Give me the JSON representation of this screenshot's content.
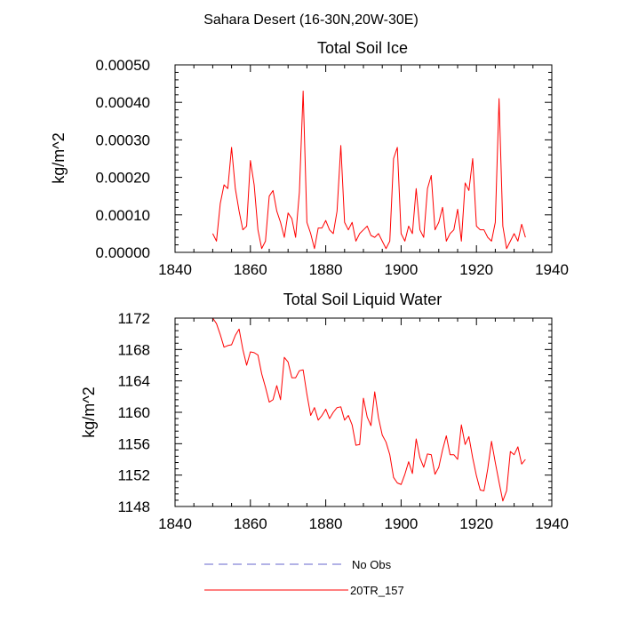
{
  "figure": {
    "title": "Sahara Desert (16-30N,20W-30E)"
  },
  "chart_data": [
    {
      "type": "line",
      "title": "Total Soil Ice",
      "xlabel": "",
      "ylabel": "kg/m^2",
      "xlim": [
        1840,
        1940
      ],
      "ylim": [
        0,
        0.0005
      ],
      "x_ticks": [
        1840,
        1860,
        1880,
        1900,
        1920,
        1940
      ],
      "x_tick_labels": [
        "1840",
        "1860",
        "1880",
        "1900",
        "1920",
        "1940"
      ],
      "y_ticks": [
        0,
        0.0001,
        0.0002,
        0.0003,
        0.0004,
        0.0005
      ],
      "y_tick_labels": [
        "0.00000",
        "0.00010",
        "0.00020",
        "0.00030",
        "0.00040",
        "0.00050"
      ],
      "series": [
        {
          "name": "20TR_157",
          "color": "#ff0000",
          "x": [
            1850,
            1851,
            1852,
            1853,
            1854,
            1855,
            1856,
            1857,
            1858,
            1859,
            1860,
            1861,
            1862,
            1863,
            1864,
            1865,
            1866,
            1867,
            1868,
            1869,
            1870,
            1871,
            1872,
            1873,
            1874,
            1875,
            1876,
            1877,
            1878,
            1879,
            1880,
            1881,
            1882,
            1883,
            1884,
            1885,
            1886,
            1887,
            1888,
            1889,
            1890,
            1891,
            1892,
            1893,
            1894,
            1895,
            1896,
            1897,
            1898,
            1899,
            1900,
            1901,
            1902,
            1903,
            1904,
            1905,
            1906,
            1907,
            1908,
            1909,
            1910,
            1911,
            1912,
            1913,
            1914,
            1915,
            1916,
            1917,
            1918,
            1919,
            1920,
            1921,
            1922,
            1923,
            1924,
            1925,
            1926,
            1927,
            1928,
            1929,
            1930,
            1931,
            1932,
            1933
          ],
          "values": [
            5e-05,
            3e-05,
            0.00013,
            0.00018,
            0.00017,
            0.00028,
            0.00017,
            0.00011,
            6e-05,
            7e-05,
            0.000245,
            0.00018,
            6e-05,
            1e-05,
            3e-05,
            0.00015,
            0.000165,
            0.00011,
            8e-05,
            4e-05,
            0.000105,
            9e-05,
            4e-05,
            0.00016,
            0.00043,
            8e-05,
            5e-05,
            1e-05,
            6.5e-05,
            6.5e-05,
            8.5e-05,
            6e-05,
            5e-05,
            0.00011,
            0.000285,
            8e-05,
            6e-05,
            8e-05,
            3e-05,
            5e-05,
            6e-05,
            7e-05,
            4.5e-05,
            4e-05,
            5e-05,
            3e-05,
            1e-05,
            3e-05,
            0.00025,
            0.00028,
            5e-05,
            3e-05,
            7e-05,
            5e-05,
            0.00017,
            6e-05,
            4e-05,
            0.00017,
            0.000205,
            6e-05,
            8e-05,
            0.00012,
            3e-05,
            5e-05,
            6e-05,
            0.000115,
            3e-05,
            0.000185,
            0.000165,
            0.00025,
            7e-05,
            6e-05,
            6e-05,
            4e-05,
            3e-05,
            8e-05,
            0.00041,
            7e-05,
            1e-05,
            3e-05,
            5e-05,
            3e-05,
            7.5e-05,
            4e-05
          ]
        },
        {
          "name": "No Obs",
          "color": "#6666cc",
          "values": []
        }
      ]
    },
    {
      "type": "line",
      "title": "Total Soil Liquid Water",
      "xlabel": "",
      "ylabel": "kg/m^2",
      "xlim": [
        1840,
        1940
      ],
      "ylim": [
        1148,
        1172
      ],
      "x_ticks": [
        1840,
        1860,
        1880,
        1900,
        1920,
        1940
      ],
      "x_tick_labels": [
        "1840",
        "1860",
        "1880",
        "1900",
        "1920",
        "1940"
      ],
      "y_ticks": [
        1148,
        1152,
        1156,
        1160,
        1164,
        1168,
        1172
      ],
      "y_tick_labels": [
        "1148",
        "1152",
        "1156",
        "1160",
        "1164",
        "1168",
        "1172"
      ],
      "series": [
        {
          "name": "20TR_157",
          "color": "#ff0000",
          "x": [
            1850,
            1851,
            1852,
            1853,
            1854,
            1855,
            1856,
            1857,
            1858,
            1859,
            1860,
            1861,
            1862,
            1863,
            1864,
            1865,
            1866,
            1867,
            1868,
            1869,
            1870,
            1871,
            1872,
            1873,
            1874,
            1875,
            1876,
            1877,
            1878,
            1879,
            1880,
            1881,
            1882,
            1883,
            1884,
            1885,
            1886,
            1887,
            1888,
            1889,
            1890,
            1891,
            1892,
            1893,
            1894,
            1895,
            1896,
            1897,
            1898,
            1899,
            1900,
            1901,
            1902,
            1903,
            1904,
            1905,
            1906,
            1907,
            1908,
            1909,
            1910,
            1911,
            1912,
            1913,
            1914,
            1915,
            1916,
            1917,
            1918,
            1919,
            1920,
            1921,
            1922,
            1923,
            1924,
            1925,
            1926,
            1927,
            1928,
            1929,
            1930,
            1931,
            1932,
            1933
          ],
          "values": [
            1172.0,
            1171.3,
            1169.9,
            1168.3,
            1168.5,
            1168.6,
            1169.8,
            1170.6,
            1168.0,
            1166.0,
            1167.7,
            1167.6,
            1167.3,
            1164.9,
            1163.2,
            1161.3,
            1161.6,
            1163.4,
            1161.6,
            1167.0,
            1166.4,
            1164.4,
            1164.4,
            1165.3,
            1165.4,
            1162.3,
            1159.6,
            1160.6,
            1159.0,
            1159.6,
            1160.4,
            1159.2,
            1160.0,
            1160.6,
            1160.7,
            1159.0,
            1159.6,
            1158.4,
            1155.8,
            1155.9,
            1161.8,
            1159.4,
            1158.3,
            1162.6,
            1159.3,
            1157.1,
            1156.2,
            1154.6,
            1151.7,
            1151.0,
            1150.8,
            1152.1,
            1153.7,
            1152.2,
            1156.6,
            1154.2,
            1153.0,
            1154.7,
            1154.6,
            1152.1,
            1153.0,
            1155.2,
            1157.0,
            1154.6,
            1154.6,
            1154.0,
            1158.4,
            1155.9,
            1156.9,
            1154.2,
            1151.9,
            1150.1,
            1150.0,
            1152.8,
            1156.3,
            1153.6,
            1151.1,
            1148.7,
            1150.0,
            1155.0,
            1154.6,
            1155.6,
            1153.4,
            1154.0
          ]
        },
        {
          "name": "No Obs",
          "color": "#6666cc",
          "values": []
        }
      ]
    }
  ],
  "legend": [
    {
      "label": "No Obs",
      "style": "dashed",
      "color": "#6666cc"
    },
    {
      "label": "20TR_157",
      "style": "solid",
      "color": "#ff0000"
    }
  ]
}
